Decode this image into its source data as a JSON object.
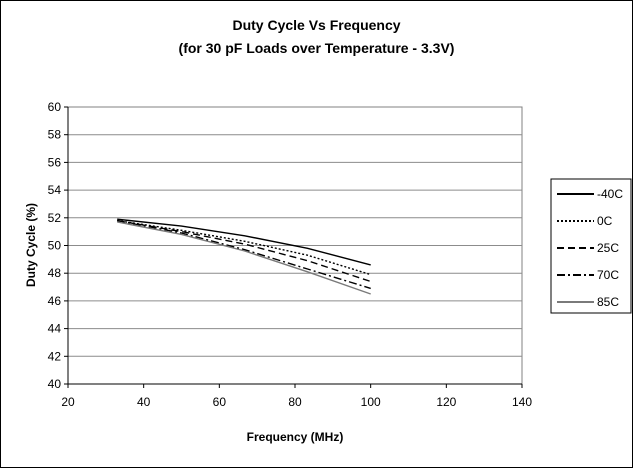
{
  "chart_data": {
    "type": "line",
    "title": "Duty Cycle Vs Frequency",
    "subtitle": "(for 30 pF Loads over Temperature - 3.3V)",
    "xlabel": "Frequency (MHz)",
    "ylabel": "Duty Cycle (%)",
    "xlim": [
      20,
      140
    ],
    "ylim": [
      40,
      60
    ],
    "x_ticks": [
      "20",
      "40",
      "60",
      "80",
      "100",
      "120",
      "140"
    ],
    "y_ticks": [
      "40",
      "42",
      "44",
      "46",
      "48",
      "50",
      "52",
      "54",
      "56",
      "58",
      "60"
    ],
    "grid": "horizontal",
    "legend_position": "right",
    "series": [
      {
        "name": "-40C",
        "color": "#000000",
        "dash": "solid",
        "x": [
          33,
          50,
          66.7,
          83.3,
          100
        ],
        "y": [
          51.9,
          51.4,
          50.7,
          49.8,
          48.6
        ]
      },
      {
        "name": "0C",
        "color": "#000000",
        "dash": "dotted",
        "x": [
          33,
          50,
          66.7,
          83.3,
          100
        ],
        "y": [
          51.8,
          51.1,
          50.3,
          49.3,
          47.9
        ]
      },
      {
        "name": "25C",
        "color": "#000000",
        "dash": "dashed",
        "x": [
          33,
          50,
          66.7,
          83.3,
          100
        ],
        "y": [
          51.8,
          51.0,
          50.1,
          48.9,
          47.4
        ]
      },
      {
        "name": "70C",
        "color": "#000000",
        "dash": "dashdot",
        "x": [
          33,
          50,
          66.7,
          83.3,
          100
        ],
        "y": [
          51.8,
          50.9,
          49.7,
          48.3,
          46.9
        ]
      },
      {
        "name": "85C",
        "color": "#7a7a7a",
        "dash": "solid",
        "x": [
          33,
          50,
          66.7,
          83.3,
          100
        ],
        "y": [
          51.7,
          50.8,
          49.6,
          48.1,
          46.5
        ]
      }
    ]
  }
}
